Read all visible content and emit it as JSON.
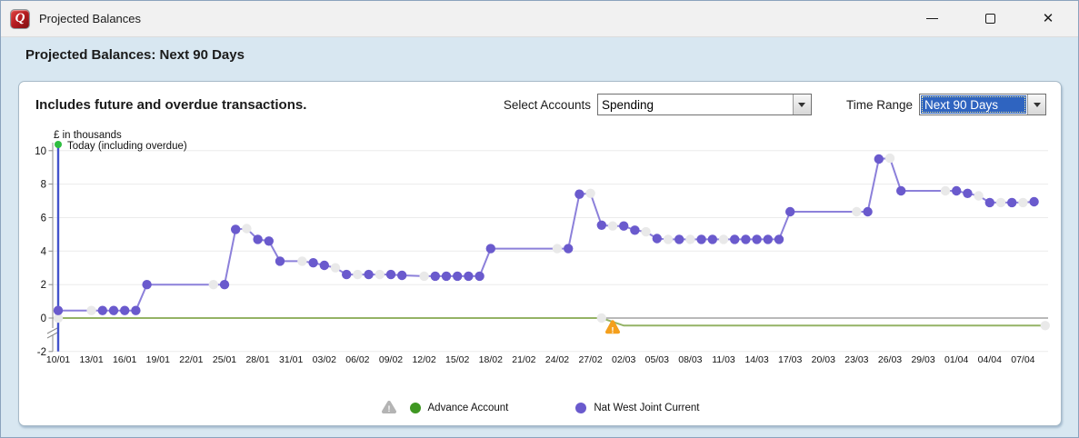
{
  "window": {
    "title": "Projected Balances",
    "controls": {
      "minimize": "minimize",
      "maximize": "maximize",
      "close": "close"
    }
  },
  "header": {
    "title": "Projected Balances: Next 90 Days"
  },
  "toolbar": {
    "note": "Includes future and overdue transactions.",
    "select_accounts_label": "Select Accounts",
    "select_accounts_value": "Spending",
    "time_range_label": "Time Range",
    "time_range_value": "Next 90 Days"
  },
  "chart_data": {
    "type": "line",
    "unit_label": "£ in thousands",
    "today_annotation": "Today (including overdue)",
    "ylim": [
      -2,
      10
    ],
    "y_ticks": [
      10,
      8,
      6,
      4,
      2,
      0,
      -2
    ],
    "x_tick_labels": [
      "10/01",
      "13/01",
      "16/01",
      "19/01",
      "22/01",
      "25/01",
      "28/01",
      "31/01",
      "03/02",
      "06/02",
      "09/02",
      "12/02",
      "15/02",
      "18/02",
      "21/02",
      "24/02",
      "27/02",
      "02/03",
      "05/03",
      "08/03",
      "11/03",
      "14/03",
      "17/03",
      "20/03",
      "23/03",
      "26/03",
      "29/03",
      "01/04",
      "04/04",
      "07/04"
    ],
    "days_per_tick": 3,
    "total_days": 89,
    "grid_on": true,
    "grid_color": "#ececec",
    "zero_line_color": "#8f8f8f",
    "axis_color": "#8a8a8a",
    "muted_dot_color": "#e9e9e9",
    "today_line": {
      "day": 0,
      "color": "#4353cc",
      "dot_color": "#2fbe41"
    },
    "warning_marker": {
      "day": 50,
      "value": -0.45,
      "color": "#f49f1c"
    },
    "series": [
      {
        "name": "Advance Account",
        "color": "#94b365",
        "dot_color": "#3f9722",
        "points": [
          [
            0,
            0,
            1
          ],
          [
            49,
            0,
            1
          ],
          [
            51,
            -0.45,
            0
          ],
          [
            89,
            -0.45,
            1
          ]
        ],
        "markers": [
          [
            0,
            0,
            1
          ],
          [
            49,
            0,
            1
          ],
          [
            89,
            -0.45,
            1
          ]
        ]
      },
      {
        "name": "Nat West Joint Current",
        "color": "#8c80da",
        "dot_color": "#6a5acd",
        "points": [
          [
            0,
            0.45,
            0
          ],
          [
            3,
            0.45,
            1
          ],
          [
            4,
            0.45,
            0
          ],
          [
            5,
            0.45,
            0
          ],
          [
            6,
            0.45,
            0
          ],
          [
            7,
            0.45,
            0
          ],
          [
            8,
            2.0,
            0
          ],
          [
            14,
            2.0,
            1
          ],
          [
            15,
            2.0,
            0
          ],
          [
            16,
            5.3,
            0
          ],
          [
            17,
            5.35,
            1
          ],
          [
            18,
            4.7,
            0
          ],
          [
            19,
            4.6,
            0
          ],
          [
            20,
            3.4,
            0
          ],
          [
            22,
            3.4,
            1
          ],
          [
            23,
            3.3,
            0
          ],
          [
            24,
            3.15,
            0
          ],
          [
            25,
            3.0,
            1
          ],
          [
            26,
            2.6,
            0
          ],
          [
            27,
            2.6,
            1
          ],
          [
            28,
            2.6,
            0
          ],
          [
            29,
            2.6,
            1
          ],
          [
            30,
            2.6,
            0
          ],
          [
            31,
            2.55,
            0
          ],
          [
            33,
            2.5,
            1
          ],
          [
            34,
            2.5,
            0
          ],
          [
            35,
            2.5,
            0
          ],
          [
            36,
            2.5,
            0
          ],
          [
            37,
            2.5,
            0
          ],
          [
            38,
            2.5,
            0
          ],
          [
            39,
            4.15,
            0
          ],
          [
            45,
            4.15,
            1
          ],
          [
            46,
            4.15,
            0
          ],
          [
            47,
            7.4,
            0
          ],
          [
            48,
            7.45,
            1
          ],
          [
            49,
            5.55,
            0
          ],
          [
            50,
            5.5,
            1
          ],
          [
            51,
            5.5,
            0
          ],
          [
            52,
            5.25,
            0
          ],
          [
            53,
            5.15,
            1
          ],
          [
            54,
            4.75,
            0
          ],
          [
            55,
            4.7,
            1
          ],
          [
            56,
            4.7,
            0
          ],
          [
            57,
            4.7,
            1
          ],
          [
            58,
            4.7,
            0
          ],
          [
            59,
            4.7,
            0
          ],
          [
            60,
            4.7,
            1
          ],
          [
            61,
            4.7,
            0
          ],
          [
            62,
            4.7,
            0
          ],
          [
            63,
            4.7,
            0
          ],
          [
            64,
            4.7,
            0
          ],
          [
            65,
            4.7,
            0
          ],
          [
            66,
            6.35,
            0
          ],
          [
            72,
            6.35,
            1
          ],
          [
            73,
            6.35,
            0
          ],
          [
            74,
            9.5,
            0
          ],
          [
            75,
            9.55,
            1
          ],
          [
            76,
            7.6,
            0
          ],
          [
            80,
            7.6,
            1
          ],
          [
            81,
            7.6,
            0
          ],
          [
            82,
            7.45,
            0
          ],
          [
            83,
            7.3,
            1
          ],
          [
            84,
            6.9,
            0
          ],
          [
            85,
            6.9,
            1
          ],
          [
            86,
            6.9,
            0
          ],
          [
            87,
            6.9,
            1
          ],
          [
            88,
            6.95,
            0
          ]
        ]
      }
    ]
  },
  "legend": {
    "warning_color": "#b4b4b4",
    "items": [
      {
        "label": "Advance Account",
        "color": "#3f9722"
      },
      {
        "label": "Nat West Joint Current",
        "color": "#6a5acd"
      }
    ]
  }
}
